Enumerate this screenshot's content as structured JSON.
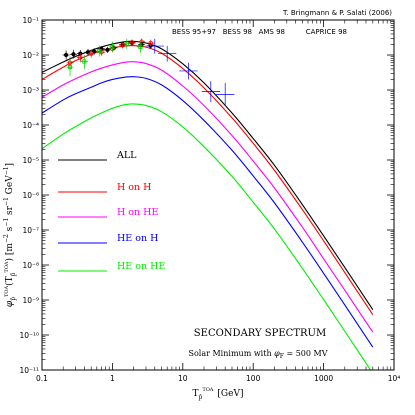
{
  "chart_data": {
    "type": "line",
    "credit": "T. Bringmann & P. Salati (2006)",
    "xlabel": "T_p̄^TOA [GeV]",
    "xlabel_main": "T",
    "xlabel_sub": "p̄",
    "xlabel_sup": "TOA",
    "xlabel_unit": "[GeV]",
    "ylabel": "φ_p̄^TOA(T_p̄^TOA) [m⁻² s⁻¹ sr⁻¹ GeV⁻¹]",
    "xscale": "log",
    "yscale": "log",
    "xlim": [
      0.1,
      10000
    ],
    "ylim": [
      1e-11,
      0.1
    ],
    "x_tick_labels": [
      "0.1",
      "1",
      "10",
      "100",
      "1000",
      "10⁴"
    ],
    "y_tick_labels": [
      "10⁻¹¹",
      "10⁻¹⁰",
      "10⁻⁹",
      "10⁻⁸",
      "10⁻⁷",
      "10⁻⁶",
      "10⁻⁵",
      "10⁻⁴",
      "10⁻³",
      "10⁻²",
      "10⁻¹"
    ],
    "annotation_title": "SECONDARY SPECTRUM",
    "annotation_subtitle": "Solar Minimum with φ_F = 500 MV",
    "annotation_sub_prefix": "Solar Minimum with ",
    "annotation_sub_phi": "φ",
    "annotation_sub_F": "F",
    "annotation_sub_suffix": " = 500 MV",
    "data_legend": [
      {
        "name": "BESS 95+97",
        "color": "#000000"
      },
      {
        "name": "BESS 98",
        "color": "#ff0000"
      },
      {
        "name": "AMS 98",
        "color": "#00cc00"
      },
      {
        "name": "CAPRICE 98",
        "color": "#0000ff"
      }
    ],
    "series": [
      {
        "name": "ALL",
        "color": "#000000",
        "x": [
          0.1,
          0.2,
          0.3,
          0.5,
          0.7,
          1,
          1.5,
          2,
          3,
          5,
          10,
          20,
          50,
          100,
          200,
          500,
          1000,
          2000,
          5000
        ],
        "y": [
          0.0032,
          0.0063,
          0.0091,
          0.0135,
          0.017,
          0.0205,
          0.024,
          0.0245,
          0.022,
          0.015,
          0.0056,
          0.0016,
          0.00022,
          4.1e-05,
          7.1e-06,
          5.3e-07,
          6.8e-08,
          8.5e-09,
          5.3e-10
        ]
      },
      {
        "name": "H on H",
        "color": "#ff0000",
        "x": [
          0.1,
          0.2,
          0.3,
          0.5,
          0.7,
          1,
          1.5,
          2,
          3,
          5,
          10,
          20,
          50,
          100,
          200,
          500,
          1000,
          2000,
          5000
        ],
        "y": [
          0.002,
          0.0045,
          0.0069,
          0.0105,
          0.0132,
          0.016,
          0.018,
          0.0185,
          0.0168,
          0.0112,
          0.0041,
          0.00115,
          0.00016,
          3e-05,
          5.1e-06,
          3.8e-07,
          4.9e-08,
          6.1e-09,
          3.8e-10
        ]
      },
      {
        "name": "H on HE",
        "color": "#ff00ff",
        "x": [
          0.1,
          0.2,
          0.3,
          0.5,
          0.7,
          1,
          1.5,
          2,
          3,
          5,
          10,
          20,
          50,
          100,
          200,
          500,
          1000,
          2000,
          5000
        ],
        "y": [
          0.00062,
          0.0014,
          0.0021,
          0.0033,
          0.0042,
          0.0052,
          0.0062,
          0.0064,
          0.0057,
          0.0037,
          0.0013,
          0.00036,
          5e-05,
          9.3e-06,
          1.6e-06,
          1.2e-07,
          1.5e-08,
          1.9e-09,
          1.2e-10
        ]
      },
      {
        "name": "HE on H",
        "color": "#0000ff",
        "x": [
          0.1,
          0.2,
          0.3,
          0.5,
          0.7,
          1,
          1.5,
          2,
          3,
          5,
          10,
          20,
          50,
          100,
          200,
          500,
          1000,
          2000,
          5000
        ],
        "y": [
          0.00022,
          0.00052,
          0.00078,
          0.0012,
          0.0016,
          0.002,
          0.00232,
          0.0024,
          0.00215,
          0.0014,
          0.0005,
          0.000135,
          1.9e-05,
          3.5e-06,
          6e-07,
          4.5e-08,
          5.8e-09,
          7.2e-10,
          4.5e-11
        ]
      },
      {
        "name": "HE on HE",
        "color": "#00ee00",
        "x": [
          0.1,
          0.2,
          0.3,
          0.5,
          0.7,
          1,
          1.5,
          2,
          3,
          5,
          10,
          20,
          50,
          100,
          200,
          500,
          1000,
          2000,
          5000
        ],
        "y": [
          2.1e-05,
          5.5e-05,
          9e-05,
          0.00016,
          0.00022,
          0.0003,
          0.00038,
          0.0004,
          0.00036,
          0.00024,
          8.8e-05,
          2.4e-05,
          3.4e-06,
          6.2e-07,
          1.07e-07,
          8e-09,
          1.03e-09,
          1.28e-10,
          8e-12
        ]
      }
    ],
    "points": [
      {
        "set": "BESS 95+97",
        "color": "#000000",
        "data": [
          [
            0.22,
            0.01,
            0.0075,
            0.0135
          ],
          [
            0.28,
            0.0105,
            0.008,
            0.014
          ],
          [
            0.35,
            0.011,
            0.0088,
            0.014
          ],
          [
            0.45,
            0.012,
            0.0098,
            0.0148
          ],
          [
            0.55,
            0.0125,
            0.0102,
            0.0155
          ],
          [
            0.7,
            0.015,
            0.0125,
            0.018
          ],
          [
            0.85,
            0.014,
            0.0115,
            0.017
          ],
          [
            1.05,
            0.016,
            0.0135,
            0.019
          ],
          [
            1.4,
            0.02,
            0.017,
            0.0235
          ],
          [
            1.9,
            0.022,
            0.0185,
            0.026
          ],
          [
            2.6,
            0.02,
            0.0165,
            0.024
          ],
          [
            3.5,
            0.0185,
            0.015,
            0.0228
          ]
        ]
      },
      {
        "set": "BESS 98",
        "color": "#ff0000",
        "data": [
          [
            0.25,
            0.006,
            0.004,
            0.009
          ],
          [
            0.35,
            0.0085,
            0.0062,
            0.0115
          ],
          [
            0.5,
            0.011,
            0.0085,
            0.014
          ],
          [
            0.7,
            0.012,
            0.0095,
            0.015
          ],
          [
            1.0,
            0.015,
            0.012,
            0.0185
          ],
          [
            1.4,
            0.019,
            0.0155,
            0.023
          ],
          [
            1.9,
            0.023,
            0.019,
            0.028
          ],
          [
            2.6,
            0.024,
            0.0195,
            0.0295
          ],
          [
            3.5,
            0.022,
            0.0175,
            0.0275
          ]
        ]
      },
      {
        "set": "AMS 98",
        "color": "#00cc00",
        "data": [
          [
            0.25,
            0.0045,
            0.0025,
            0.008
          ],
          [
            0.4,
            0.0065,
            0.004,
            0.01
          ],
          [
            0.65,
            0.013,
            0.009,
            0.0185
          ],
          [
            1.0,
            0.017,
            0.012,
            0.024
          ],
          [
            1.6,
            0.021,
            0.015,
            0.029
          ],
          [
            2.5,
            0.017,
            0.0115,
            0.025
          ]
        ]
      },
      {
        "set": "CAPRICE 98",
        "color": "#0000ff",
        "data": [
          [
            4.0,
            0.018,
            0.011,
            0.029
          ],
          [
            6.0,
            0.011,
            0.0065,
            0.018
          ],
          [
            12.0,
            0.0035,
            0.002,
            0.006
          ],
          [
            25.0,
            0.0009,
            0.00045,
            0.0018
          ],
          [
            40.0,
            0.00075,
            0.00035,
            0.0016
          ]
        ]
      }
    ]
  }
}
